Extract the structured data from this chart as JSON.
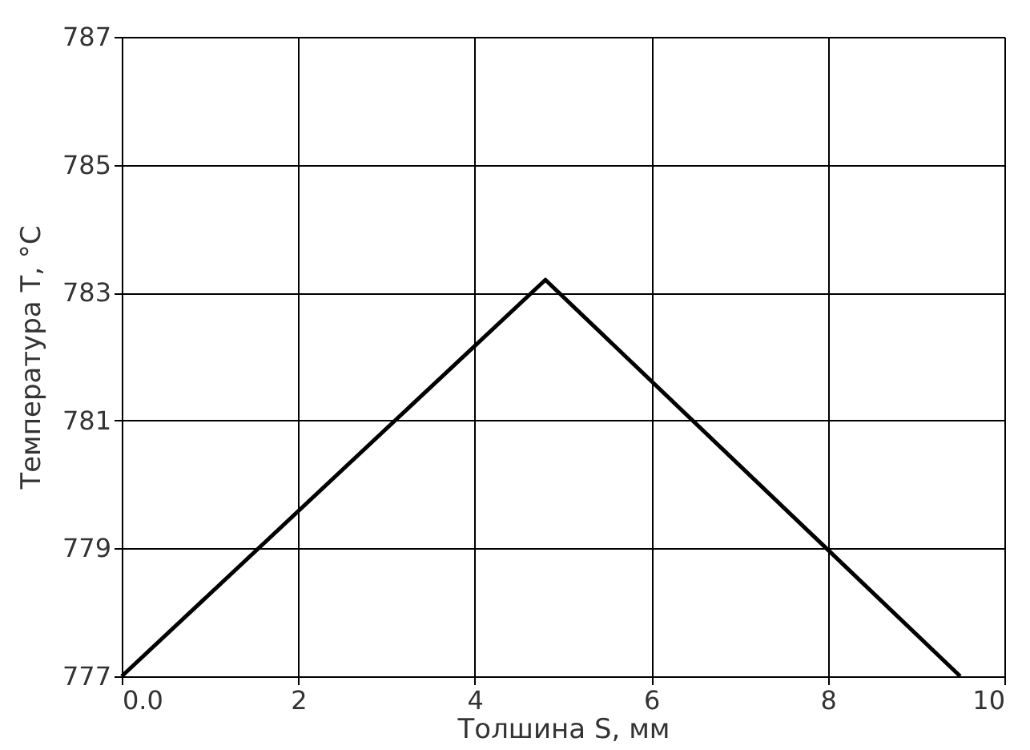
{
  "chart_data": {
    "type": "line",
    "xlabel": "Толшина S, мм",
    "ylabel": "Температура T, °C",
    "x": [
      0,
      4.8,
      9.5
    ],
    "series": [
      {
        "color": "#000000",
        "values": [
          777,
          783.2,
          777
        ]
      }
    ],
    "xlim": [
      0,
      10
    ],
    "xticks": [
      {
        "value": 0,
        "label": "0.0"
      },
      2,
      4,
      6,
      8,
      10
    ],
    "ylim": [
      777,
      787
    ],
    "yticks": [
      777,
      779,
      781,
      783,
      785,
      787
    ],
    "grid": true,
    "legend": false,
    "marker": "none",
    "line_style": "solid"
  }
}
